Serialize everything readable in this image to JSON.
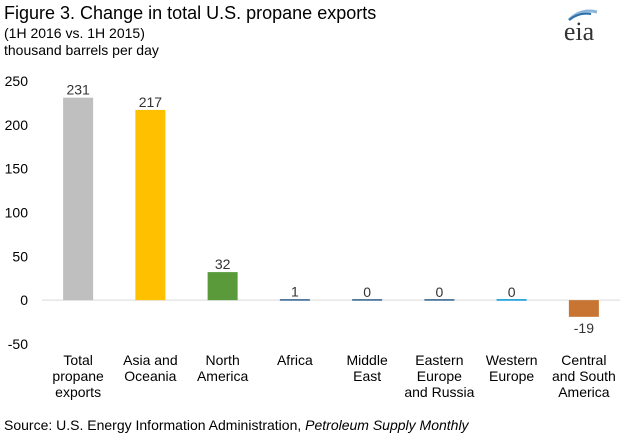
{
  "header": {
    "title": "Figure 3. Change in total U.S. propane exports",
    "subtitle": "(1H 2016 vs. 1H 2015)",
    "units": "thousand barrels per day"
  },
  "logo": {
    "text": "eia",
    "icon": "eia-logo"
  },
  "footer": {
    "source_prefix": "Source: U.S. Energy Information Administration, ",
    "source_title": "Petroleum Supply Monthly"
  },
  "chart_data": {
    "type": "bar",
    "categories": [
      [
        "Total",
        "propane",
        "exports"
      ],
      [
        "Asia and",
        "Oceania"
      ],
      [
        "North",
        "America"
      ],
      [
        "Africa"
      ],
      [
        "Middle",
        "East"
      ],
      [
        "Eastern",
        "Europe",
        "and Russia"
      ],
      [
        "Western",
        "Europe"
      ],
      [
        "Central",
        "and South",
        "America"
      ]
    ],
    "values": [
      231,
      217,
      32,
      1,
      0,
      0,
      0,
      -19
    ],
    "labels": [
      "231",
      "217",
      "32",
      "1",
      "0",
      "0",
      "0",
      "-19"
    ],
    "colors": [
      "#bfbfbf",
      "#ffc000",
      "#5a9a3a",
      "#2f5f8a",
      "#2f5f8a",
      "#2f5f8a",
      "#0096d7",
      "#c87533"
    ],
    "yticks": [
      -50,
      0,
      50,
      100,
      150,
      200,
      250
    ],
    "ylim": [
      -50,
      250
    ],
    "grid": false,
    "legend": "none"
  }
}
